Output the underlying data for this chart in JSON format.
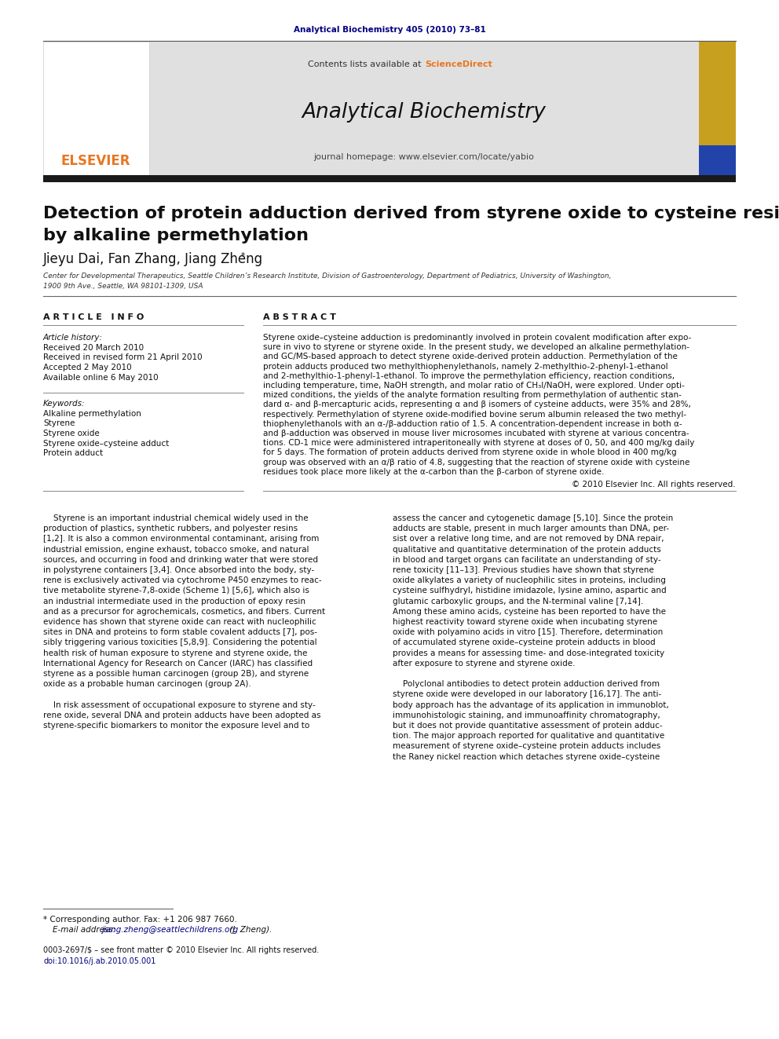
{
  "page_background": "#ffffff",
  "top_journal_ref": "Analytical Biochemistry 405 (2010) 73–81",
  "top_journal_ref_color": "#000080",
  "header_bg": "#e0e0e0",
  "header_sciencedirect_color": "#e87722",
  "journal_name": "Analytical Biochemistry",
  "thick_bar_color": "#1a1a1a",
  "article_title_line1": "Detection of protein adduction derived from styrene oxide to cysteine residues",
  "article_title_line2": "by alkaline permethylation",
  "authors": "Jieyu Dai, Fan Zhang, Jiang Zheng",
  "affiliation": "Center for Developmental Therapeutics, Seattle Children’s Research Institute, Division of Gastroenterology, Department of Pediatrics, University of Washington,",
  "affiliation2": "1900 9th Ave., Seattle, WA 98101-1309, USA",
  "article_history": [
    "Received 20 March 2010",
    "Received in revised form 21 April 2010",
    "Accepted 2 May 2010",
    "Available online 6 May 2010"
  ],
  "keywords": [
    "Alkaline permethylation",
    "Styrene",
    "Styrene oxide",
    "Styrene oxide–cysteine adduct",
    "Protein adduct"
  ],
  "abstract_lines": [
    "Styrene oxide–cysteine adduction is predominantly involved in protein covalent modification after expo-",
    "sure in vivo to styrene or styrene oxide. In the present study, we developed an alkaline permethylation-",
    "and GC/MS-based approach to detect styrene oxide-derived protein adduction. Permethylation of the",
    "protein adducts produced two methylthiophenylethanols, namely 2-methylthio-2-phenyl-1-ethanol",
    "and 2-methylthio-1-phenyl-1-ethanol. To improve the permethylation efficiency, reaction conditions,",
    "including temperature, time, NaOH strength, and molar ratio of CH₃I/NaOH, were explored. Under opti-",
    "mized conditions, the yields of the analyte formation resulting from permethylation of authentic stan-",
    "dard α- and β-mercapturic acids, representing α and β isomers of cysteine adducts, were 35% and 28%,",
    "respectively. Permethylation of styrene oxide-modified bovine serum albumin released the two methyl-",
    "thiophenylethanols with an α-/β-adduction ratio of 1.5. A concentration-dependent increase in both α-",
    "and β-adduction was observed in mouse liver microsomes incubated with styrene at various concentra-",
    "tions. CD-1 mice were administered intraperitoneally with styrene at doses of 0, 50, and 400 mg/kg daily",
    "for 5 days. The formation of protein adducts derived from styrene oxide in whole blood in 400 mg/kg",
    "group was observed with an α/β ratio of 4.8, suggesting that the reaction of styrene oxide with cysteine",
    "residues took place more likely at the α-carbon than the β-carbon of styrene oxide."
  ],
  "copyright": "© 2010 Elsevier Inc. All rights reserved.",
  "body_lines_left": [
    "    Styrene is an important industrial chemical widely used in the",
    "production of plastics, synthetic rubbers, and polyester resins",
    "[1,2]. It is also a common environmental contaminant, arising from",
    "industrial emission, engine exhaust, tobacco smoke, and natural",
    "sources, and occurring in food and drinking water that were stored",
    "in polystyrene containers [3,4]. Once absorbed into the body, sty-",
    "rene is exclusively activated via cytochrome P450 enzymes to reac-",
    "tive metabolite styrene-7,8-oxide (Scheme 1) [5,6], which also is",
    "an industrial intermediate used in the production of epoxy resin",
    "and as a precursor for agrochemicals, cosmetics, and fibers. Current",
    "evidence has shown that styrene oxide can react with nucleophilic",
    "sites in DNA and proteins to form stable covalent adducts [7], pos-",
    "sibly triggering various toxicities [5,8,9]. Considering the potential",
    "health risk of human exposure to styrene and styrene oxide, the",
    "International Agency for Research on Cancer (IARC) has classified",
    "styrene as a possible human carcinogen (group 2B), and styrene",
    "oxide as a probable human carcinogen (group 2A).",
    "    In risk assessment of occupational exposure to styrene and sty-",
    "rene oxide, several DNA and protein adducts have been adopted as",
    "styrene-specific biomarkers to monitor the exposure level and to"
  ],
  "body_lines_right": [
    "assess the cancer and cytogenetic damage [5,10]. Since the protein",
    "adducts are stable, present in much larger amounts than DNA, per-",
    "sist over a relative long time, and are not removed by DNA repair,",
    "qualitative and quantitative determination of the protein adducts",
    "in blood and target organs can facilitate an understanding of sty-",
    "rene toxicity [11–13]. Previous studies have shown that styrene",
    "oxide alkylates a variety of nucleophilic sites in proteins, including",
    "cysteine sulfhydryl, histidine imidazole, lysine amino, aspartic and",
    "glutamic carboxylic groups, and the N-terminal valine [7,14].",
    "Among these amino acids, cysteine has been reported to have the",
    "highest reactivity toward styrene oxide when incubating styrene",
    "oxide with polyamino acids in vitro [15]. Therefore, determination",
    "of accumulated styrene oxide–cysteine protein adducts in blood",
    "provides a means for assessing time- and dose-integrated toxicity",
    "after exposure to styrene and styrene oxide.",
    "    Polyclonal antibodies to detect protein adduction derived from",
    "styrene oxide were developed in our laboratory [16,17]. The anti-",
    "body approach has the advantage of its application in immunoblot,",
    "immunohistologic staining, and immunoaffinity chromatography,",
    "but it does not provide quantitative assessment of protein adduc-",
    "tion. The major approach reported for qualitative and quantitative",
    "measurement of styrene oxide–cysteine protein adducts includes",
    "the Raney nickel reaction which detaches styrene oxide–cysteine"
  ],
  "footnote_line1": "* Corresponding author. Fax: +1 206 987 7660.",
  "footnote_line2_prefix": "E-mail address: ",
  "footnote_email": "jiang.zheng@seattlechildrens.org",
  "footnote_email_suffix": " (J. Zheng).",
  "footer_issn": "0003-2697/$ – see front matter © 2010 Elsevier Inc. All rights reserved.",
  "footer_doi": "doi:10.1016/j.ab.2010.05.001",
  "elsevier_color": "#e87722",
  "link_color": "#000080",
  "doi_color": "#000080"
}
